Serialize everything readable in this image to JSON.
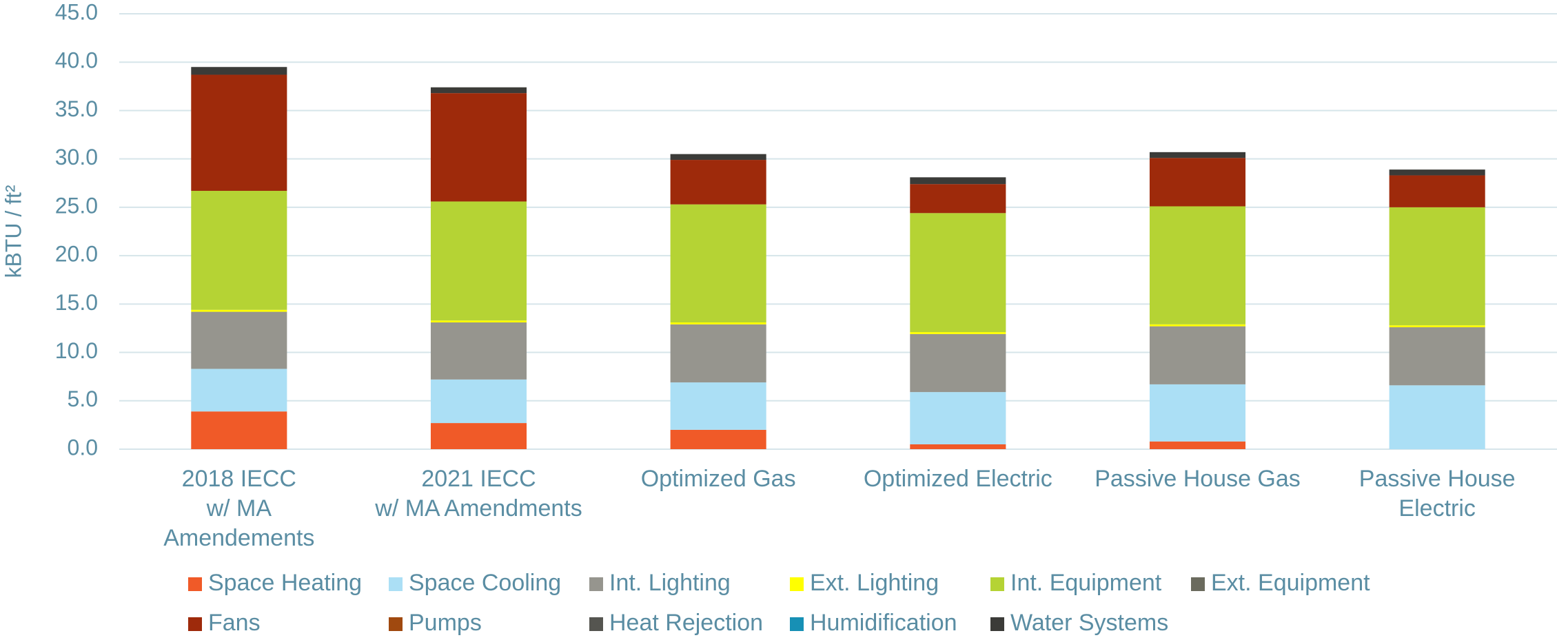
{
  "chart_data": {
    "type": "bar",
    "stacked": true,
    "y_label": "kBTU / ft²",
    "categories": [
      "2018 IECC\nw/ MA\nAmendements",
      "2021 IECC\nw/ MA Amendments",
      "Optimized Gas",
      "Optimized Electric",
      "Passive House Gas",
      "Passive House\nElectric"
    ],
    "series": [
      {
        "name": "Space Heating",
        "color": "#f05a28",
        "values": [
          3.9,
          2.7,
          2.0,
          0.5,
          0.8,
          0
        ]
      },
      {
        "name": "Space Cooling",
        "color": "#abdff5",
        "values": [
          4.4,
          4.5,
          4.9,
          5.4,
          5.9,
          6.6
        ]
      },
      {
        "name": "Int. Lighting",
        "color": "#96958e",
        "values": [
          5.9,
          5.9,
          6.0,
          6.0,
          6.0,
          6.0
        ]
      },
      {
        "name": "Ext. Lighting",
        "color": "#ffff00",
        "values": [
          0.2,
          0.2,
          0.2,
          0.2,
          0.2,
          0.2
        ]
      },
      {
        "name": "Int. Equipment",
        "color": "#b5d334",
        "values": [
          12.3,
          12.3,
          12.2,
          12.3,
          12.2,
          12.2
        ]
      },
      {
        "name": "Ext. Equipment",
        "color": "#6b6b5e",
        "values": [
          0,
          0,
          0,
          0,
          0,
          0
        ]
      },
      {
        "name": "Fans",
        "color": "#9e2a0b",
        "values": [
          12.0,
          11.2,
          4.6,
          3.0,
          5.0,
          3.3
        ]
      },
      {
        "name": "Pumps",
        "color": "#a0490f",
        "values": [
          0,
          0,
          0,
          0,
          0,
          0
        ]
      },
      {
        "name": "Heat Rejection",
        "color": "#555550",
        "values": [
          0,
          0,
          0,
          0,
          0,
          0
        ]
      },
      {
        "name": "Humidification",
        "color": "#1790b5",
        "values": [
          0,
          0,
          0,
          0,
          0,
          0
        ]
      },
      {
        "name": "Water Systems",
        "color": "#3b3b38",
        "values": [
          0.8,
          0.6,
          0.6,
          0.7,
          0.6,
          0.6
        ]
      }
    ],
    "ylim": [
      0,
      45
    ],
    "yticks": [
      {
        "value": 0,
        "label": "0.0"
      },
      {
        "value": 5,
        "label": "5.0"
      },
      {
        "value": 10,
        "label": "10.0"
      },
      {
        "value": 15,
        "label": "15.0"
      },
      {
        "value": 20,
        "label": "20.0"
      },
      {
        "value": 25,
        "label": "25.0"
      },
      {
        "value": 30,
        "label": "30.0"
      },
      {
        "value": 35,
        "label": "35.0"
      },
      {
        "value": 40,
        "label": "40.0"
      },
      {
        "value": 45,
        "label": "45.0"
      }
    ],
    "grid": true,
    "legend": "bottom"
  }
}
